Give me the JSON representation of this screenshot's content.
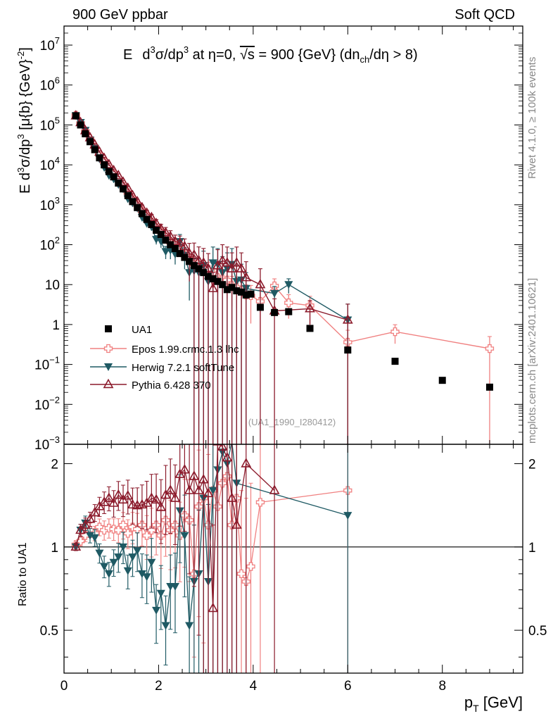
{
  "header": {
    "left": "900 GeV ppbar",
    "right": "Soft QCD"
  },
  "side": {
    "rivet": "Rivet 4.1.0, ≥ 100k events",
    "mcplots": "mcplots.cern.ch [arXiv:2401.10621]"
  },
  "watermark": "(UA1_1990_I280412)",
  "colors": {
    "ua1": "#000000",
    "epos": "#f08080",
    "herwig": "#1f5a64",
    "pythia": "#8b1a2b"
  },
  "chart_data": {
    "type": "scatter",
    "title": "E d³σ/dp³ at η=0, √s = 900 {GeV} (dn_ch/dη > 8)",
    "title_parts": {
      "a": "E",
      "b": "d",
      "c": "3",
      "d": "σ/dp",
      "e": "3",
      "f": " at η=0, ",
      "g": "√s",
      "h": " = 900 {GeV} (dn",
      "i": "ch",
      "j": "/dη > 8)"
    },
    "ylabel": "E d³σ/dp³ [μ{b} {GeV}⁻²]",
    "ylabel_parts": {
      "a": "E d",
      "b": "3",
      "c": "σ/dp",
      "d": "3",
      "e": " [μ{b} {GeV}",
      "f": "-2",
      "g": "]"
    },
    "xlabel": "p_T [GeV]",
    "xlabel_parts": {
      "a": "p",
      "b": "T",
      "c": " [GeV]"
    },
    "ratio_ylabel": "Ratio to UA1",
    "xlim": [
      0,
      9.7
    ],
    "ylim": [
      0.001,
      30000000
    ],
    "ratio_ylim": [
      0.35,
      2.35
    ],
    "x_ticks": [
      "0",
      "2",
      "4",
      "6",
      "8"
    ],
    "y_ticks": [
      {
        "m": "10",
        "e": "7"
      },
      {
        "m": "10",
        "e": "6"
      },
      {
        "m": "10",
        "e": "5"
      },
      {
        "m": "10",
        "e": "4"
      },
      {
        "m": "10",
        "e": "3"
      },
      {
        "m": "10",
        "e": "2"
      },
      {
        "m": "10",
        "e": ""
      },
      {
        "m": "1",
        "e": ""
      },
      {
        "m": "10",
        "e": "−1"
      },
      {
        "m": "10",
        "e": "−2"
      },
      {
        "m": "10",
        "e": "−3"
      }
    ],
    "ratio_ticks": [
      "2",
      "1",
      "0.5"
    ],
    "legend": [
      "UA1",
      "Epos 1.99.crmc.1.3 lhc",
      "Herwig 7.2.1 softTune",
      "Pythia 6.428 370"
    ],
    "series": [
      {
        "name": "UA1",
        "marker": "square",
        "x": [
          0.25,
          0.35,
          0.45,
          0.55,
          0.65,
          0.75,
          0.85,
          0.95,
          1.05,
          1.15,
          1.25,
          1.35,
          1.45,
          1.55,
          1.65,
          1.75,
          1.85,
          1.95,
          2.05,
          2.15,
          2.25,
          2.35,
          2.45,
          2.55,
          2.65,
          2.75,
          2.85,
          2.95,
          3.05,
          3.15,
          3.25,
          3.35,
          3.45,
          3.55,
          3.65,
          3.75,
          3.85,
          3.95,
          4.15,
          4.45,
          4.75,
          5.2,
          6.0,
          7.0,
          8.0,
          9.0
        ],
        "y": [
          170000,
          100000,
          60000,
          38000,
          24000,
          15000,
          10000,
          6800,
          5000,
          3500,
          2500,
          1700,
          1200,
          850,
          600,
          430,
          320,
          230,
          180,
          130,
          100,
          80,
          60,
          48,
          38,
          30,
          25,
          20,
          16,
          14,
          12,
          10,
          7.5,
          8.5,
          7,
          6.5,
          5.5,
          5.8,
          2.7,
          2.0,
          2.1,
          0.8,
          0.23,
          0.12,
          0.04,
          0.027
        ]
      },
      {
        "name": "Epos 1.99.crmc.1.3 lhc",
        "marker": "open-cross",
        "x": [
          0.25,
          0.35,
          0.45,
          0.55,
          0.65,
          0.75,
          0.85,
          0.95,
          1.05,
          1.15,
          1.25,
          1.35,
          1.45,
          1.55,
          1.65,
          1.75,
          1.85,
          1.95,
          2.05,
          2.15,
          2.25,
          2.35,
          2.45,
          2.55,
          2.65,
          2.75,
          2.85,
          2.95,
          3.05,
          3.15,
          3.25,
          3.35,
          3.45,
          3.55,
          3.65,
          3.75,
          3.85,
          3.95,
          4.15,
          4.45,
          4.75,
          5.2,
          6.0,
          7.0,
          9.0
        ],
        "y": [
          175000,
          110000,
          70000,
          45000,
          28000,
          18000,
          11800,
          7900,
          5800,
          4100,
          2900,
          2000,
          1400,
          990,
          700,
          520,
          370,
          270,
          210,
          155,
          115,
          96,
          75,
          55,
          44,
          32,
          28,
          27,
          24,
          19,
          15,
          14,
          13,
          9.5,
          8.5,
          7.2,
          5.5,
          5.3,
          3.8,
          9.3,
          3.5,
          3.0,
          0.36,
          0.66,
          0.25
        ],
        "err": [
          0.03,
          0.03,
          0.03,
          0.03,
          0.04,
          0.04,
          0.05,
          0.05,
          0.06,
          0.06,
          0.07,
          0.07,
          0.08,
          0.08,
          0.09,
          0.1,
          0.1,
          0.12,
          0.12,
          0.14,
          0.15,
          0.18,
          0.2,
          0.25,
          0.3,
          0.35,
          0.4,
          0.45,
          0.5,
          0.55,
          0.6,
          0.6,
          0.65,
          0.7,
          0.7,
          0.75,
          0.8,
          0.8,
          0.9,
          0.5,
          0.6,
          0.7,
          1.0,
          0.5,
          1.0
        ]
      },
      {
        "name": "Herwig 7.2.1 softTune",
        "marker": "filled-down-triangle",
        "x": [
          0.25,
          0.35,
          0.45,
          0.55,
          0.65,
          0.75,
          0.85,
          0.95,
          1.05,
          1.15,
          1.25,
          1.35,
          1.45,
          1.55,
          1.65,
          1.75,
          1.85,
          1.95,
          2.05,
          2.15,
          2.25,
          2.35,
          2.45,
          2.55,
          2.65,
          2.75,
          2.85,
          2.95,
          3.05,
          3.15,
          3.25,
          3.35,
          3.45,
          3.55,
          3.65,
          3.75,
          3.85,
          4.45,
          4.75,
          6.0
        ],
        "y": [
          170000,
          115000,
          73000,
          42000,
          26000,
          14000,
          8500,
          5400,
          4400,
          3200,
          2500,
          1400,
          1100,
          820,
          480,
          340,
          280,
          135,
          120,
          67,
          72,
          58,
          120,
          54,
          20,
          22,
          20,
          30,
          12,
          35,
          32,
          20,
          25,
          32,
          12,
          13,
          8,
          6,
          10,
          1.3
        ],
        "err": [
          0.03,
          0.03,
          0.04,
          0.04,
          0.05,
          0.06,
          0.07,
          0.08,
          0.09,
          0.1,
          0.11,
          0.12,
          0.13,
          0.14,
          0.16,
          0.18,
          0.2,
          0.25,
          0.3,
          0.35,
          0.4,
          0.45,
          0.5,
          0.55,
          0.8,
          1.0,
          1.2,
          1.3,
          1.4,
          1.5,
          1.5,
          1.5,
          1.5,
          1.5,
          1.5,
          1.5,
          1.5,
          0.5,
          0.4,
          1.5
        ]
      },
      {
        "name": "Pythia 6.428 370",
        "marker": "open-triangle",
        "x": [
          0.25,
          0.35,
          0.45,
          0.55,
          0.65,
          0.75,
          0.85,
          0.95,
          1.05,
          1.15,
          1.25,
          1.35,
          1.45,
          1.55,
          1.65,
          1.75,
          1.85,
          1.95,
          2.05,
          2.15,
          2.25,
          2.35,
          2.45,
          2.55,
          2.65,
          2.75,
          2.85,
          2.95,
          3.05,
          3.15,
          3.25,
          3.35,
          3.45,
          3.55,
          3.65,
          3.75,
          3.85,
          4.15,
          4.45,
          5.2,
          6.0
        ],
        "y": [
          170000,
          115000,
          72000,
          48000,
          32000,
          21000,
          14500,
          10200,
          7200,
          5400,
          3700,
          2600,
          1700,
          1200,
          850,
          620,
          480,
          340,
          250,
          200,
          160,
          120,
          110,
          90,
          60,
          55,
          40,
          35,
          25,
          8,
          30,
          40,
          35,
          25,
          35,
          25,
          15,
          10,
          2.2,
          2.5,
          1.3
        ],
        "err": [
          0.03,
          0.03,
          0.04,
          0.04,
          0.05,
          0.06,
          0.07,
          0.08,
          0.09,
          0.1,
          0.11,
          0.12,
          0.13,
          0.14,
          0.16,
          0.18,
          0.2,
          0.25,
          0.3,
          0.35,
          0.4,
          0.45,
          0.5,
          0.55,
          0.8,
          1.0,
          1.2,
          1.3,
          1.4,
          1.5,
          1.5,
          1.5,
          1.5,
          1.5,
          1.5,
          1.5,
          1.5,
          1.5,
          1.0,
          0.6,
          1.5
        ]
      }
    ],
    "ratio_series": [
      {
        "name": "Epos 1.99.crmc.1.3 lhc",
        "x": [
          0.25,
          0.35,
          0.45,
          0.55,
          0.65,
          0.75,
          0.85,
          0.95,
          1.05,
          1.15,
          1.25,
          1.35,
          1.45,
          1.55,
          1.65,
          1.75,
          1.85,
          1.95,
          2.05,
          2.15,
          2.25,
          2.35,
          2.45,
          2.55,
          2.65,
          2.75,
          2.85,
          2.95,
          3.05,
          3.15,
          3.25,
          3.35,
          3.45,
          3.55,
          3.65,
          3.75,
          3.85,
          3.95,
          4.15,
          6.0
        ],
        "y": [
          1.02,
          1.05,
          1.1,
          1.15,
          1.12,
          1.18,
          1.15,
          1.17,
          1.16,
          1.15,
          1.2,
          1.12,
          1.18,
          1.16,
          1.2,
          1.1,
          1.15,
          1.2,
          1.1,
          1.25,
          1.15,
          1.2,
          1.1,
          1.3,
          1.25,
          0.8,
          1.4,
          1.5,
          1.2,
          1.6,
          1.4,
          1.7,
          1.8,
          1.2,
          1.5,
          0.8,
          0.75,
          0.85,
          1.45,
          1.6
        ],
        "err": [
          0.03,
          0.04,
          0.05,
          0.06,
          0.06,
          0.07,
          0.08,
          0.08,
          0.09,
          0.1,
          0.11,
          0.12,
          0.13,
          0.14,
          0.16,
          0.18,
          0.2,
          0.22,
          0.24,
          0.26,
          0.28,
          0.3,
          0.32,
          0.35,
          0.4,
          0.5,
          0.6,
          0.7,
          0.8,
          0.9,
          1.0,
          1.0,
          1.0,
          1.0,
          1.0,
          1.0,
          1.0,
          1.0,
          1.2,
          1.5
        ]
      },
      {
        "name": "Herwig 7.2.1 softTune",
        "x": [
          0.25,
          0.35,
          0.45,
          0.55,
          0.65,
          0.75,
          0.85,
          0.95,
          1.05,
          1.15,
          1.25,
          1.35,
          1.45,
          1.55,
          1.65,
          1.75,
          1.85,
          1.95,
          2.05,
          2.15,
          2.25,
          2.35,
          2.45,
          2.55,
          2.65,
          2.75,
          2.85,
          2.95,
          3.05,
          3.15,
          3.25,
          3.35,
          3.45,
          3.55,
          3.65,
          6.0
        ],
        "y": [
          1.0,
          1.15,
          1.22,
          1.1,
          1.08,
          0.95,
          0.85,
          0.8,
          0.88,
          0.92,
          1.0,
          0.82,
          0.92,
          0.97,
          0.8,
          0.78,
          0.88,
          0.59,
          0.68,
          0.52,
          0.72,
          0.72,
          1.35,
          1.1,
          0.52,
          0.75,
          0.8,
          1.5,
          0.75,
          1.6,
          1.9,
          2.2,
          2.0,
          2.4,
          1.7,
          1.3
        ],
        "err": [
          0.03,
          0.05,
          0.06,
          0.06,
          0.07,
          0.08,
          0.09,
          0.1,
          0.11,
          0.12,
          0.13,
          0.14,
          0.15,
          0.16,
          0.18,
          0.2,
          0.22,
          0.24,
          0.26,
          0.28,
          0.3,
          0.32,
          0.35,
          0.4,
          0.5,
          0.6,
          0.7,
          0.8,
          0.9,
          1.0,
          1.2,
          1.4,
          1.5,
          1.5,
          1.5,
          1.5
        ]
      },
      {
        "name": "Pythia 6.428 370",
        "x": [
          0.25,
          0.35,
          0.45,
          0.55,
          0.65,
          0.75,
          0.85,
          0.95,
          1.05,
          1.15,
          1.25,
          1.35,
          1.45,
          1.55,
          1.65,
          1.75,
          1.85,
          1.95,
          2.05,
          2.15,
          2.25,
          2.35,
          2.45,
          2.55,
          2.65,
          2.75,
          2.85,
          2.95,
          3.05,
          3.15,
          3.25,
          3.35,
          3.45,
          3.55,
          3.65,
          3.85,
          4.45
        ],
        "y": [
          1.0,
          1.15,
          1.2,
          1.26,
          1.33,
          1.4,
          1.45,
          1.5,
          1.44,
          1.54,
          1.48,
          1.53,
          1.42,
          1.41,
          1.42,
          1.44,
          1.5,
          1.48,
          1.39,
          1.54,
          1.6,
          1.5,
          1.83,
          1.9,
          1.6,
          1.8,
          1.6,
          1.75,
          1.56,
          0.6,
          2.4,
          2.3,
          2.1,
          1.5,
          1.2,
          2.0,
          1.6
        ],
        "err": [
          0.03,
          0.05,
          0.06,
          0.06,
          0.07,
          0.08,
          0.09,
          0.1,
          0.11,
          0.12,
          0.13,
          0.14,
          0.15,
          0.16,
          0.18,
          0.2,
          0.22,
          0.24,
          0.26,
          0.28,
          0.3,
          0.32,
          0.35,
          0.4,
          0.5,
          0.6,
          0.7,
          0.8,
          0.9,
          1.0,
          1.2,
          1.4,
          1.5,
          1.5,
          1.5,
          1.5,
          1.5
        ]
      }
    ]
  }
}
